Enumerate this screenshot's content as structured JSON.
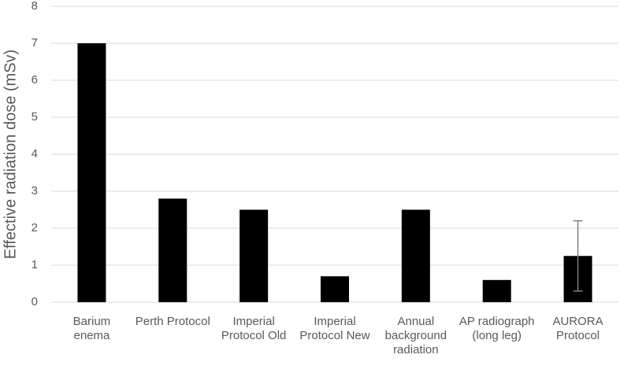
{
  "chart_data": {
    "type": "bar",
    "y_label": "Effective radiation dose (mSv)",
    "categories": [
      "Barium enema",
      "Perth Protocol",
      "Imperial Protocol Old",
      "Imperial Protocol New",
      "Annual background radiation",
      "AP radiograph (long leg)",
      "AURORA Protocol"
    ],
    "values": [
      7.0,
      2.8,
      2.5,
      0.7,
      2.5,
      0.6,
      1.25
    ],
    "errors": [
      null,
      null,
      null,
      null,
      null,
      null,
      0.95
    ],
    "color": "#000000",
    "error_color": "#7f7f7f",
    "ylim": [
      0,
      8
    ],
    "yticks": [
      0,
      1,
      2,
      3,
      4,
      5,
      6,
      7,
      8
    ],
    "grid": true
  }
}
